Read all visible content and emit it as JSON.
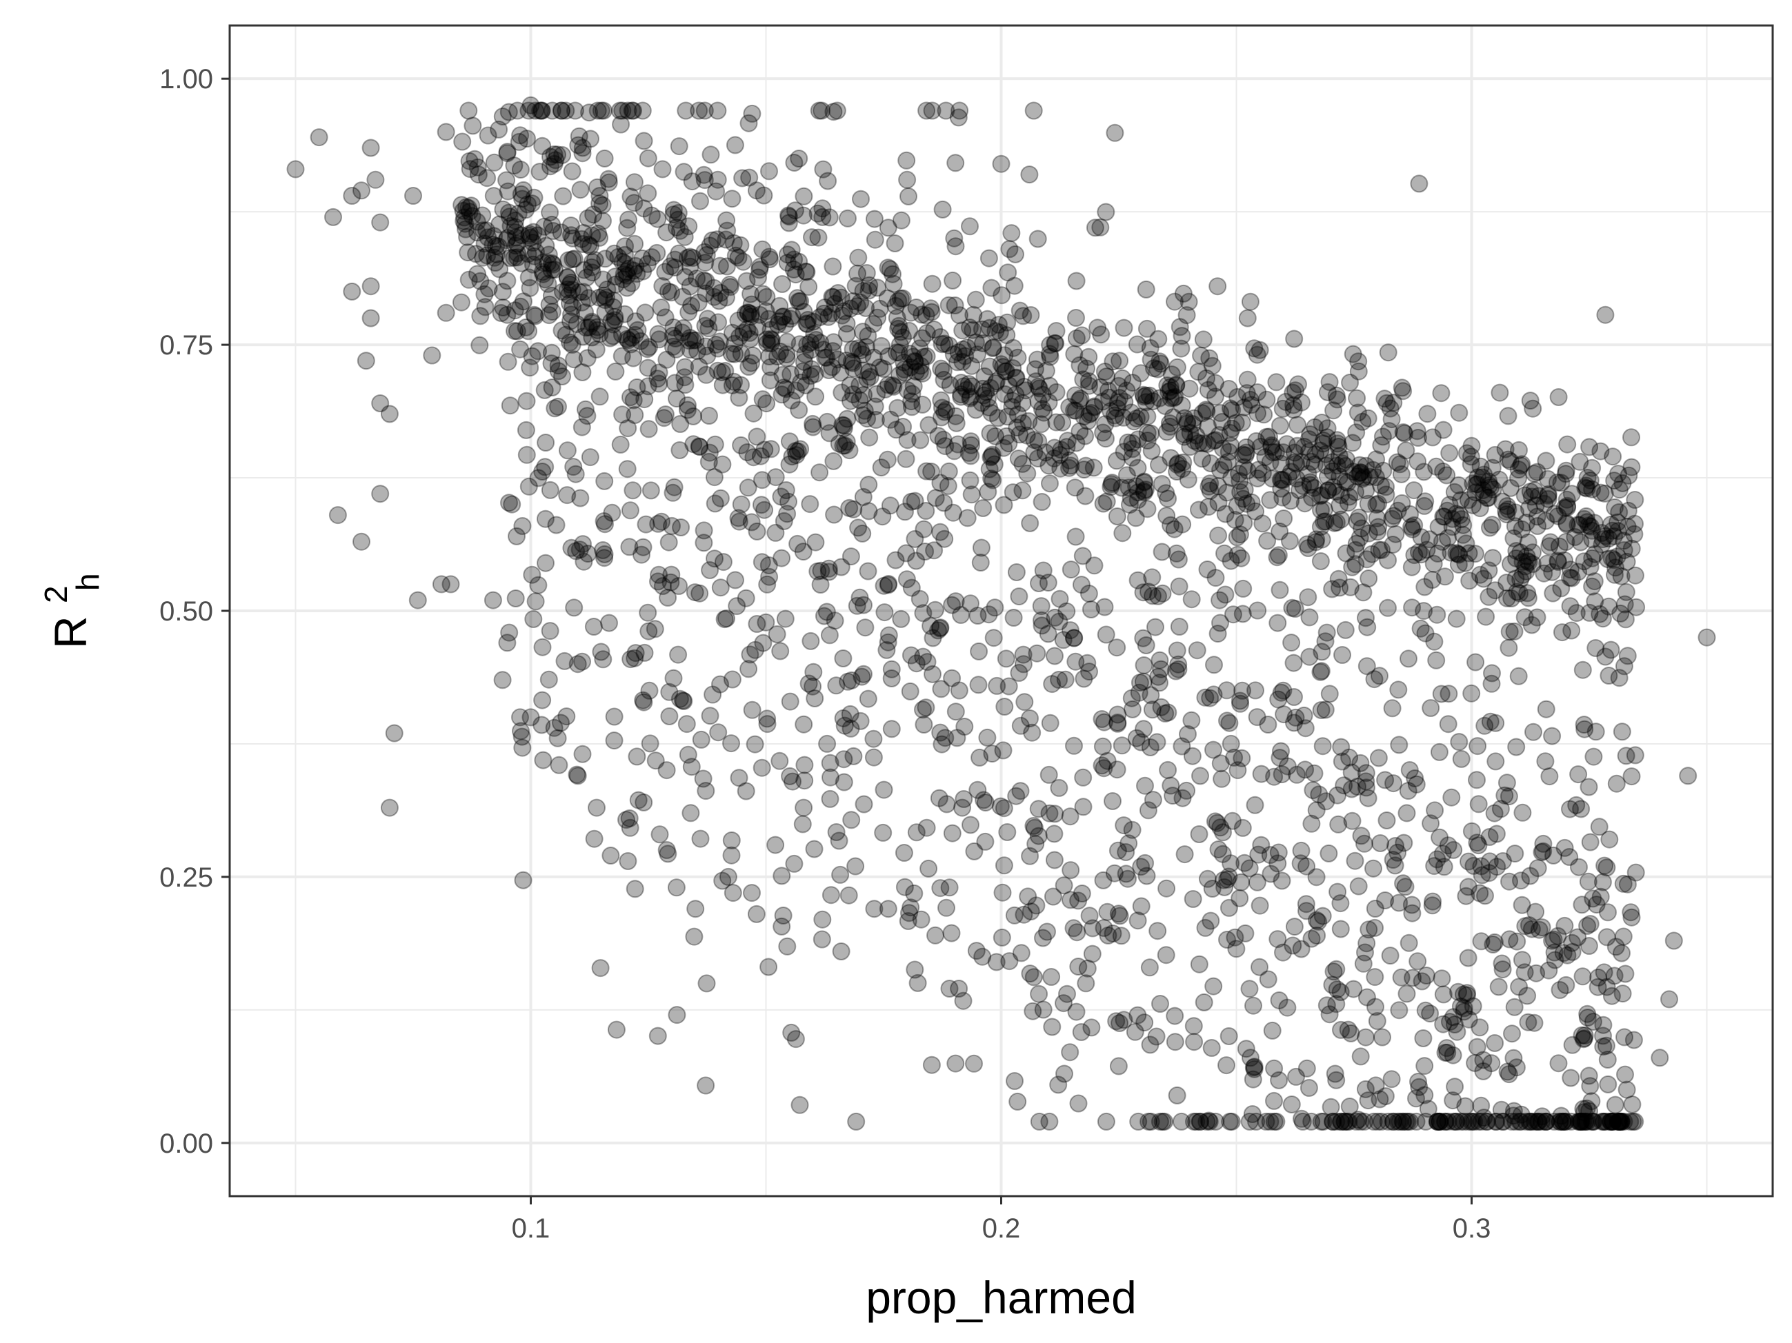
{
  "chart_data": {
    "type": "scatter",
    "xlabel": "prop_harmed",
    "ylabel": {
      "base": "R",
      "superscript": "2",
      "subscript": "h"
    },
    "xlim": [
      0.036,
      0.364
    ],
    "ylim": [
      -0.05,
      1.05
    ],
    "x_ticks": [
      {
        "value": 0.1,
        "label": "0.1"
      },
      {
        "value": 0.2,
        "label": "0.2"
      },
      {
        "value": 0.3,
        "label": "0.3"
      }
    ],
    "y_ticks": [
      {
        "value": 0.0,
        "label": "0.00"
      },
      {
        "value": 0.25,
        "label": "0.25"
      },
      {
        "value": 0.5,
        "label": "0.50"
      },
      {
        "value": 0.75,
        "label": "0.75"
      },
      {
        "value": 1.0,
        "label": "1.00"
      }
    ],
    "x_minor": [
      0.05,
      0.15,
      0.25,
      0.35
    ],
    "y_minor": [
      0.125,
      0.375,
      0.625,
      0.875
    ],
    "grid": true,
    "point_color": "#000000",
    "point_opacity": 0.3,
    "outline_points": [
      [
        0.05,
        0.915
      ],
      [
        0.055,
        0.945
      ],
      [
        0.058,
        0.87
      ],
      [
        0.062,
        0.89
      ],
      [
        0.064,
        0.895
      ],
      [
        0.066,
        0.935
      ],
      [
        0.067,
        0.905
      ],
      [
        0.068,
        0.865
      ],
      [
        0.062,
        0.8
      ],
      [
        0.065,
        0.735
      ],
      [
        0.066,
        0.805
      ],
      [
        0.066,
        0.775
      ],
      [
        0.068,
        0.695
      ],
      [
        0.07,
        0.685
      ],
      [
        0.068,
        0.61
      ],
      [
        0.059,
        0.59
      ],
      [
        0.064,
        0.565
      ],
      [
        0.076,
        0.51
      ],
      [
        0.081,
        0.525
      ],
      [
        0.083,
        0.525
      ],
      [
        0.071,
        0.385
      ],
      [
        0.07,
        0.315
      ],
      [
        0.079,
        0.74
      ],
      [
        0.082,
        0.78
      ],
      [
        0.075,
        0.89
      ],
      [
        0.082,
        0.95
      ],
      [
        0.087,
        0.875
      ],
      [
        0.092,
        0.51
      ],
      [
        0.094,
        0.435
      ],
      [
        0.095,
        0.47
      ],
      [
        0.096,
        0.6
      ],
      [
        0.097,
        0.57
      ],
      [
        0.1,
        0.975
      ],
      [
        0.105,
        0.92
      ],
      [
        0.1,
        0.4
      ],
      [
        0.105,
        0.39
      ],
      [
        0.106,
        0.355
      ],
      [
        0.11,
        0.345
      ],
      [
        0.11,
        0.45
      ],
      [
        0.114,
        0.315
      ],
      [
        0.117,
        0.27
      ],
      [
        0.115,
        0.97
      ],
      [
        0.121,
        0.305
      ],
      [
        0.124,
        0.32
      ],
      [
        0.131,
        0.24
      ],
      [
        0.135,
        0.22
      ],
      [
        0.134,
        0.31
      ],
      [
        0.142,
        0.25
      ],
      [
        0.143,
        0.235
      ],
      [
        0.147,
        0.235
      ],
      [
        0.148,
        0.215
      ],
      [
        0.152,
        0.28
      ],
      [
        0.157,
        0.925
      ],
      [
        0.158,
        0.315
      ],
      [
        0.162,
        0.21
      ],
      [
        0.166,
        0.18
      ],
      [
        0.169,
        0.26
      ],
      [
        0.173,
        0.22
      ],
      [
        0.176,
        0.22
      ],
      [
        0.18,
        0.905
      ],
      [
        0.183,
        0.21
      ],
      [
        0.186,
        0.195
      ],
      [
        0.189,
        0.145
      ],
      [
        0.191,
        0.145
      ],
      [
        0.196,
        0.175
      ],
      [
        0.199,
        0.17
      ],
      [
        0.2,
        0.92
      ],
      [
        0.206,
        0.91
      ],
      [
        0.208,
        0.14
      ],
      [
        0.214,
        0.14
      ],
      [
        0.218,
        0.15
      ],
      [
        0.22,
        0.86
      ],
      [
        0.229,
        0.12
      ],
      [
        0.233,
        0.1
      ],
      [
        0.237,
        0.095
      ],
      [
        0.241,
        0.095
      ],
      [
        0.246,
        0.805
      ],
      [
        0.253,
        0.08
      ],
      [
        0.258,
        0.07
      ],
      [
        0.265,
        0.07
      ],
      [
        0.271,
        0.065
      ],
      [
        0.278,
        0.04
      ],
      [
        0.283,
        0.06
      ],
      [
        0.29,
        0.045
      ],
      [
        0.296,
        0.04
      ],
      [
        0.302,
        0.035
      ],
      [
        0.309,
        0.03
      ],
      [
        0.315,
        0.025
      ],
      [
        0.32,
        0.02
      ],
      [
        0.325,
        0.03
      ],
      [
        0.329,
        0.055
      ],
      [
        0.333,
        0.05
      ],
      [
        0.34,
        0.08
      ],
      [
        0.342,
        0.135
      ],
      [
        0.343,
        0.19
      ],
      [
        0.346,
        0.345
      ],
      [
        0.35,
        0.475
      ],
      [
        0.334,
        0.635
      ],
      [
        0.33,
        0.645
      ],
      [
        0.323,
        0.64
      ],
      [
        0.313,
        0.69
      ],
      [
        0.306,
        0.705
      ],
      [
        0.3,
        0.655
      ],
      [
        0.294,
        0.67
      ],
      [
        0.283,
        0.68
      ],
      [
        0.276,
        0.725
      ],
      [
        0.262,
        0.705
      ],
      [
        0.255,
        0.745
      ],
      [
        0.243,
        0.755
      ],
      [
        0.231,
        0.765
      ],
      [
        0.216,
        0.81
      ],
      [
        0.203,
        0.835
      ],
      [
        0.19,
        0.85
      ],
      [
        0.176,
        0.86
      ],
      [
        0.162,
        0.87
      ],
      [
        0.148,
        0.895
      ],
      [
        0.136,
        0.885
      ],
      [
        0.128,
        0.915
      ],
      [
        0.111,
        0.93
      ],
      [
        0.095,
        0.93
      ]
    ],
    "cluster_bands": [
      {
        "x_from": 0.085,
        "x_to": 0.335,
        "y_center_start": 0.855,
        "y_center_end": 0.545,
        "spread": 0.05,
        "count": 1300
      },
      {
        "x_from": 0.095,
        "x_to": 0.335,
        "y_center_start": 0.72,
        "y_center_end": 0.1,
        "spread": 0.21,
        "count": 1600
      }
    ],
    "total_points_approx": 3000
  }
}
